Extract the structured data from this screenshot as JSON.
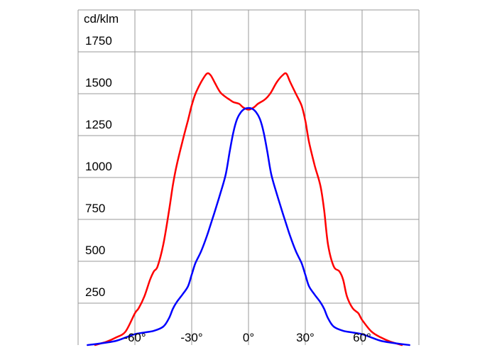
{
  "chart_data": {
    "type": "line",
    "unit_label": "cd/klm",
    "x_ticks": [
      {
        "value": -60,
        "label": "-60°"
      },
      {
        "value": -30,
        "label": "-30°"
      },
      {
        "value": 0,
        "label": "0°"
      },
      {
        "value": 30,
        "label": "30°"
      },
      {
        "value": 60,
        "label": "60°"
      }
    ],
    "y_ticks": [
      {
        "value": 250,
        "label": "250"
      },
      {
        "value": 500,
        "label": "500"
      },
      {
        "value": 750,
        "label": "750"
      },
      {
        "value": 1000,
        "label": "1000"
      },
      {
        "value": 1250,
        "label": "1250"
      },
      {
        "value": 1500,
        "label": "1500"
      },
      {
        "value": 1750,
        "label": "1750"
      }
    ],
    "xlim": [
      -90,
      90
    ],
    "ylim": [
      0,
      2000
    ],
    "grid": true,
    "series": [
      {
        "color": "#ff0000",
        "x": [
          -81,
          -75,
          -70,
          -65,
          -60,
          -58,
          -55,
          -52,
          -50,
          -48,
          -45,
          -42,
          -40,
          -38,
          -35,
          -32,
          -30,
          -28,
          -25,
          -22,
          -20,
          -18,
          -15,
          -12,
          -10,
          -8,
          -5,
          -3,
          0,
          3,
          5,
          8,
          10,
          12,
          15,
          18,
          20,
          22,
          25,
          28,
          30,
          32,
          35,
          38,
          40,
          42,
          45,
          48,
          50,
          52,
          55,
          58,
          60,
          65,
          70,
          75,
          81
        ],
        "values": [
          0,
          20,
          45,
          80,
          190,
          220,
          290,
          390,
          440,
          470,
          600,
          800,
          950,
          1070,
          1210,
          1340,
          1430,
          1500,
          1570,
          1620,
          1610,
          1570,
          1510,
          1480,
          1465,
          1450,
          1440,
          1420,
          1405,
          1420,
          1440,
          1460,
          1480,
          1510,
          1570,
          1610,
          1620,
          1570,
          1500,
          1430,
          1340,
          1210,
          1070,
          950,
          800,
          600,
          470,
          440,
          390,
          290,
          220,
          190,
          150,
          80,
          45,
          20,
          0
        ]
      },
      {
        "color": "#0000ff",
        "x": [
          -85,
          -78,
          -70,
          -65,
          -60,
          -55,
          -50,
          -45,
          -42,
          -40,
          -38,
          -35,
          -32,
          -30,
          -28,
          -25,
          -22,
          -20,
          -18,
          -15,
          -12,
          -10,
          -8,
          -6,
          -4,
          -2,
          0,
          2,
          4,
          6,
          8,
          10,
          12,
          15,
          18,
          20,
          22,
          25,
          28,
          30,
          32,
          35,
          38,
          40,
          42,
          45,
          50,
          55,
          60,
          65,
          70,
          78,
          85
        ],
        "values": [
          0,
          10,
          25,
          45,
          65,
          75,
          85,
          110,
          160,
          215,
          255,
          300,
          350,
          420,
          490,
          560,
          650,
          720,
          790,
          900,
          1020,
          1150,
          1270,
          1350,
          1390,
          1410,
          1415,
          1410,
          1390,
          1350,
          1270,
          1150,
          1020,
          900,
          790,
          720,
          650,
          560,
          490,
          420,
          350,
          300,
          255,
          215,
          160,
          110,
          85,
          75,
          65,
          45,
          25,
          10,
          0
        ]
      }
    ]
  }
}
